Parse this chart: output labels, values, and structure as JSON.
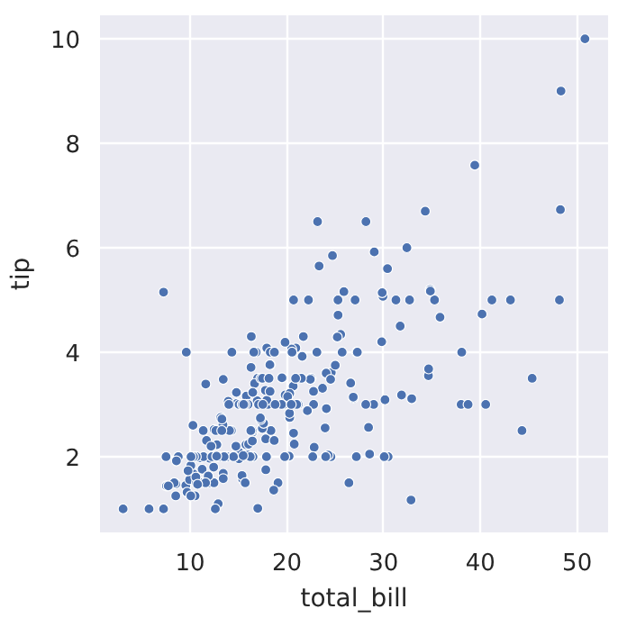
{
  "chart_data": {
    "type": "scatter",
    "xlabel": "total_bill",
    "ylabel": "tip",
    "xlim": [
      0.68,
      53.2
    ],
    "ylim": [
      0.55,
      10.45
    ],
    "xticks": [
      10,
      20,
      30,
      40,
      50
    ],
    "yticks": [
      2,
      4,
      6,
      8,
      10
    ],
    "grid": true,
    "marker": "circle",
    "series": [
      {
        "color": "#4c72b0",
        "x": [
          16.99,
          23.68,
          24.59,
          25.29,
          8.77,
          26.88,
          15.04,
          14.78,
          35.26,
          15.42,
          14.83,
          21.58,
          10.33,
          16.29,
          16.97,
          20.65,
          17.92,
          20.29,
          15.77,
          39.42,
          19.82,
          17.81,
          21.7,
          19.65,
          9.55,
          18.35,
          15.06,
          20.69,
          17.78,
          24.06,
          16.93,
          18.69,
          31.27,
          16.04,
          17.46,
          13.94,
          9.68,
          30.4,
          22.23,
          32.4,
          28.55,
          18.04,
          10.29,
          34.81,
          9.94,
          25.56,
          19.49,
          38.01,
          26.41,
          11.24,
          48.27,
          20.29,
          13.81,
          11.02,
          18.29,
          17.59,
          20.08,
          16.45,
          3.07,
          20.23,
          15.01,
          12.02,
          17.07,
          26.86,
          25.28,
          14.73,
          10.51,
          17.92,
          27.2,
          22.76,
          17.29,
          19.44,
          16.66,
          10.07,
          32.68,
          15.98,
          34.83,
          18.28,
          24.71,
          21.16,
          28.97,
          22.49,
          5.75,
          16.32,
          22.75,
          40.17,
          27.28,
          12.03,
          21.01,
          12.46,
          11.35,
          15.38,
          44.3,
          22.42,
          20.92,
          15.36,
          20.49,
          25.21,
          18.24,
          14.31,
          14.0,
          7.25,
          38.07,
          23.95,
          25.71,
          17.31,
          29.93,
          10.65,
          12.43,
          24.08,
          11.69,
          13.42,
          14.26,
          12.48,
          29.8,
          8.52,
          14.52,
          11.38,
          22.82,
          19.08,
          20.27,
          11.17,
          12.26,
          18.26,
          8.51,
          13.16,
          17.47,
          34.3,
          41.19,
          27.05,
          16.43,
          8.35,
          18.64,
          11.87,
          9.78,
          7.51,
          14.07,
          17.26,
          24.55,
          19.77,
          29.85,
          48.17,
          25.0,
          13.39,
          16.49,
          21.5,
          12.66,
          16.21,
          17.51,
          24.52,
          20.76,
          31.71,
          10.59,
          10.63,
          50.81,
          15.81,
          7.25,
          31.85,
          16.82,
          32.9,
          17.89,
          14.48,
          9.6,
          34.63,
          34.65,
          23.33,
          45.35,
          23.17,
          40.55,
          20.69,
          20.9,
          30.46,
          18.15,
          23.1,
          15.69,
          19.81,
          28.44,
          15.48,
          16.58,
          7.56,
          10.34,
          43.11,
          13.0,
          13.51,
          18.71,
          12.74,
          16.4,
          20.53,
          16.47,
          26.59,
          38.73,
          24.27,
          12.76,
          30.06,
          25.89,
          48.33,
          13.27,
          28.17,
          12.9,
          28.15,
          11.59,
          7.74,
          30.14,
          12.16,
          13.42,
          8.58,
          15.98,
          13.42,
          16.27,
          10.09,
          20.45,
          13.28,
          22.12,
          24.01,
          15.69,
          11.61,
          10.77,
          15.53,
          10.07,
          12.6,
          32.83,
          35.83,
          29.03,
          27.18,
          22.67,
          17.82,
          18.78
        ],
        "values": [
          1.01,
          3.31,
          3.61,
          4.71,
          2.0,
          3.12,
          1.96,
          3.23,
          5.0,
          1.57,
          3.02,
          3.92,
          1.67,
          3.71,
          3.5,
          3.35,
          4.08,
          2.75,
          2.23,
          7.58,
          3.18,
          2.34,
          4.3,
          3.0,
          1.45,
          2.5,
          3.0,
          2.45,
          3.27,
          3.6,
          3.07,
          2.31,
          5.0,
          2.24,
          2.54,
          3.06,
          1.32,
          5.6,
          5.0,
          6.0,
          2.05,
          3.0,
          2.6,
          5.2,
          1.56,
          4.34,
          3.51,
          3.0,
          1.5,
          1.76,
          6.73,
          3.21,
          2.0,
          1.98,
          3.76,
          2.64,
          3.15,
          2.47,
          1.0,
          2.01,
          2.09,
          1.97,
          3.0,
          3.14,
          5.0,
          2.2,
          1.25,
          3.08,
          4.0,
          3.0,
          2.71,
          3.0,
          3.4,
          1.83,
          5.0,
          2.03,
          5.17,
          4.0,
          5.85,
          3.0,
          3.0,
          3.5,
          1.0,
          4.3,
          3.25,
          4.73,
          4.0,
          1.5,
          3.0,
          1.5,
          2.5,
          3.0,
          2.5,
          3.48,
          4.08,
          1.64,
          4.06,
          4.29,
          3.76,
          4.0,
          3.0,
          1.0,
          4.0,
          2.55,
          4.0,
          3.5,
          5.07,
          1.5,
          1.8,
          2.92,
          2.31,
          1.68,
          2.5,
          2.52,
          4.2,
          1.48,
          2.0,
          2.0,
          2.18,
          1.5,
          2.83,
          1.5,
          2.0,
          3.25,
          1.25,
          2.75,
          3.5,
          6.7,
          5.0,
          5.0,
          2.3,
          1.5,
          1.36,
          1.63,
          1.73,
          2.0,
          2.5,
          2.74,
          2.0,
          2.0,
          5.14,
          5.0,
          3.75,
          2.61,
          2.0,
          3.5,
          2.5,
          2.0,
          3.0,
          3.48,
          2.24,
          4.5,
          1.61,
          2.0,
          10.0,
          3.16,
          5.15,
          3.18,
          4.0,
          3.11,
          2.0,
          2.0,
          4.0,
          3.55,
          3.68,
          5.65,
          3.5,
          6.5,
          3.0,
          5.0,
          3.5,
          2.0,
          3.5,
          4.0,
          1.5,
          4.19,
          2.56,
          2.02,
          4.0,
          1.44,
          2.0,
          5.0,
          2.0,
          2.0,
          4.0,
          2.01,
          2.5,
          4.0,
          3.23,
          3.41,
          3.0,
          2.03,
          2.23,
          2.0,
          5.16,
          9.0,
          2.5,
          6.5,
          1.1,
          3.0,
          1.5,
          1.44,
          3.09,
          2.2,
          3.48,
          1.92,
          3.0,
          1.58,
          2.5,
          2.0,
          3.0,
          2.72,
          2.88,
          2.0,
          3.0,
          3.39,
          1.47,
          3.0,
          1.25,
          1.0,
          1.17,
          4.67,
          5.92,
          2.0,
          2.0,
          1.75,
          3.0
        ]
      }
    ]
  }
}
